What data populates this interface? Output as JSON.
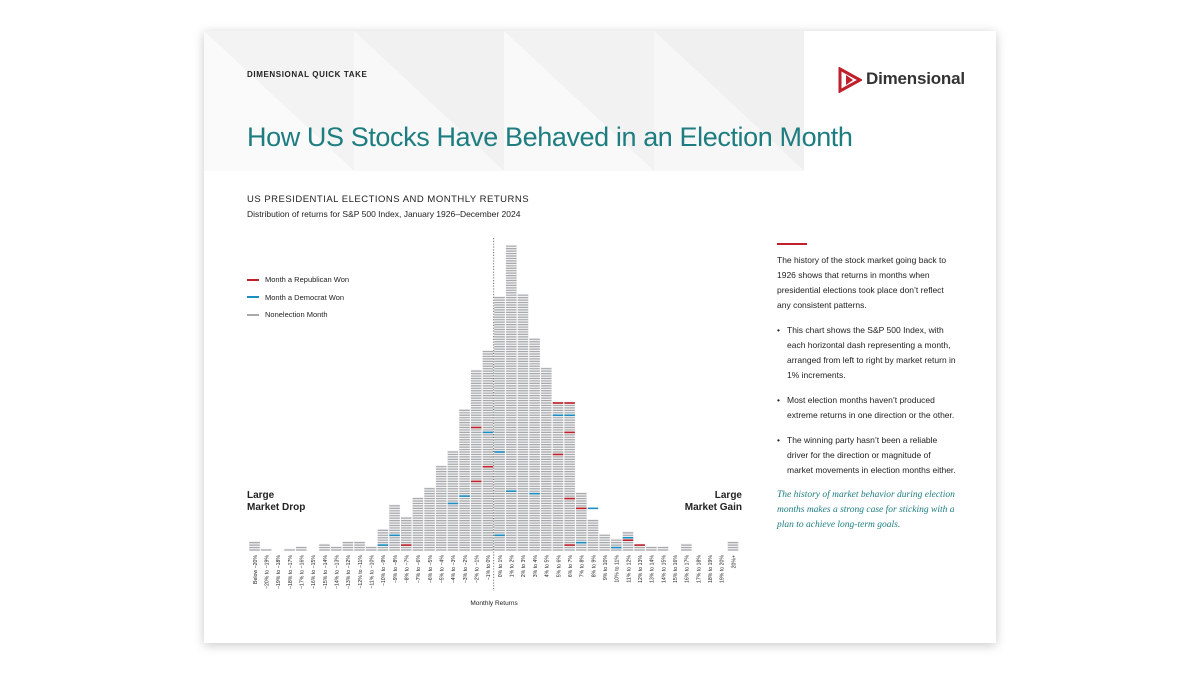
{
  "header": {
    "kicker": "DIMENSIONAL QUICK TAKE",
    "logo_text": "Dimensional",
    "title": "How US Stocks Have Behaved in an Election Month"
  },
  "chart_header": {
    "title": "US PRESIDENTIAL ELECTIONS AND MONTHLY RETURNS",
    "subtitle": "Distribution of returns for S&P 500 Index, January 1926–December 2024"
  },
  "legend": {
    "items": [
      {
        "label": "Month a Republican Won",
        "color": "#c0202a"
      },
      {
        "label": "Month a Democrat Won",
        "color": "#1b8fc4"
      },
      {
        "label": "Nonelection Month",
        "color": "#a7a9ac"
      }
    ]
  },
  "end_labels": {
    "left_line1": "Large",
    "left_line2": "Market Drop",
    "right_line1": "Large",
    "right_line2": "Market Gain"
  },
  "colors": {
    "accent_teal": "#1d7d80",
    "republican": "#c0202a",
    "democrat": "#1b8fc4",
    "nonelection": "#a7a9ac"
  },
  "chart_data": {
    "type": "bar",
    "xlabel": "Monthly Returns",
    "ylabel": "",
    "categories": [
      "Below −20%",
      "−20% to −19%",
      "−19% to −18%",
      "−18% to −17%",
      "−17% to −16%",
      "−16% to −15%",
      "−15% to −14%",
      "−14% to −13%",
      "−13% to −12%",
      "−12% to −11%",
      "−11% to −10%",
      "−10% to −9%",
      "−9% to −8%",
      "−8% to −7%",
      "−7% to −6%",
      "−6% to −5%",
      "−5% to −4%",
      "−4% to −3%",
      "−3% to −2%",
      "−2% to −1%",
      "−1% to 0%",
      "0% to 1%",
      "1% to 2%",
      "2% to 3%",
      "3% to 4%",
      "4% to 5%",
      "5% to 6%",
      "6% to 7%",
      "7% to 8%",
      "8% to 9%",
      "9% to 10%",
      "10% to 11%",
      "11% to 12%",
      "12% to 13%",
      "13% to 14%",
      "14% to 15%",
      "15% to 16%",
      "16% to 17%",
      "17% to 18%",
      "18% to 19%",
      "19% to 20%",
      "20%+"
    ],
    "values": [
      4,
      1,
      0,
      1,
      2,
      0,
      3,
      2,
      4,
      4,
      2,
      9,
      19,
      14,
      22,
      26,
      35,
      41,
      58,
      74,
      82,
      104,
      125,
      105,
      87,
      75,
      61,
      61,
      24,
      13,
      7,
      5,
      8,
      3,
      2,
      2,
      0,
      3,
      0,
      0,
      0,
      4
    ],
    "series": [
      {
        "name": "Month a Republican Won",
        "points": [
          [
            13,
            2
          ],
          [
            19,
            50
          ],
          [
            19,
            28
          ],
          [
            20,
            34
          ],
          [
            26,
            60
          ],
          [
            26,
            39
          ],
          [
            27,
            60
          ],
          [
            27,
            48
          ],
          [
            27,
            21
          ],
          [
            27,
            2
          ],
          [
            28,
            17
          ],
          [
            32,
            4
          ],
          [
            33,
            2
          ]
        ]
      },
      {
        "name": "Month a Democrat Won",
        "points": [
          [
            11,
            2
          ],
          [
            12,
            6
          ],
          [
            17,
            19
          ],
          [
            18,
            22
          ],
          [
            20,
            48
          ],
          [
            21,
            40
          ],
          [
            21,
            6
          ],
          [
            22,
            24
          ],
          [
            24,
            23
          ],
          [
            26,
            55
          ],
          [
            27,
            55
          ],
          [
            28,
            3
          ],
          [
            29,
            17
          ],
          [
            31,
            1
          ],
          [
            32,
            5
          ]
        ]
      }
    ],
    "ylim": [
      0,
      125
    ],
    "grid": false,
    "legend": "top-left",
    "annotations": [
      "Large Market Drop",
      "Large Market Gain"
    ]
  },
  "sidebar": {
    "intro": "The history of the stock market going back to 1926 shows that returns in months when presidential elections took place don’t reflect any consistent patterns.",
    "bullets": [
      "This chart shows the S&P 500 Index, with each horizontal dash representing a month, arranged from left to right by market return in 1% increments.",
      "Most election months haven’t produced extreme returns in one direction or the other.",
      "The winning party hasn’t been a reliable driver for the direction or magnitude of market movements in election months either."
    ],
    "bullet_glyph": "•",
    "quote": "The history of market behavior during election months makes a strong case for sticking with a plan to achieve long-term goals."
  }
}
